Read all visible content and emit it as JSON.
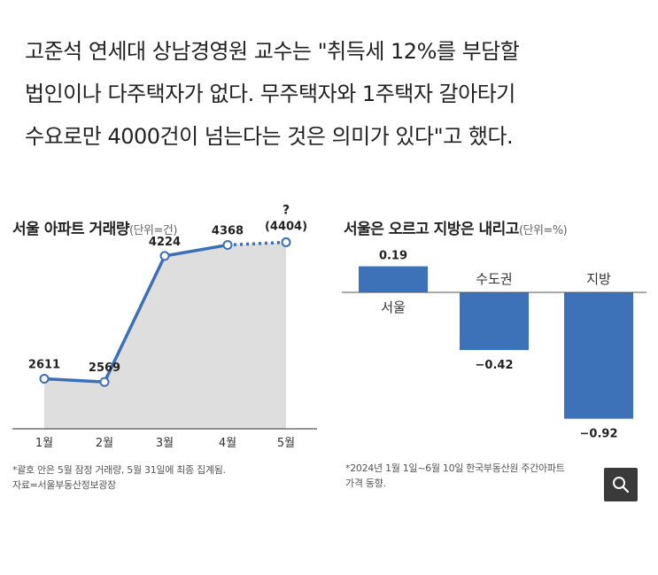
{
  "quote": {
    "line1": "고준석 연세대 상남경영원 교수는 \"취득세 12%를 부담할",
    "line2": "법인이나 다주택자가 없다. 무주택자와 1주택자 갈아타기",
    "line3": "수요로만 4000건이 넘는다는 것은 의미가 있다\"고 했다."
  },
  "left_chart": {
    "title": "서울 아파트 거래량",
    "unit": "(단위=건)",
    "note_line1": "*괄호 안은 5월 잠정 거래량, 5월 31일에 최종 집계됨.",
    "note_line2": "자료=서울부동산정보광장"
  },
  "right_chart": {
    "title": "서울은 오르고 지방은 내리고",
    "unit": "(단위=%)",
    "note_line1": "*2024년 1월 1일~6월 10일 한국부동산원 주간아파트",
    "note_line2": "가격 동향."
  },
  "colors": {
    "accent": "#3d6fb5",
    "area": "#dedede",
    "bar": "#3d72b8"
  },
  "zoom_icon": "zoom-search-icon",
  "chart_data": [
    {
      "type": "line",
      "title": "서울 아파트 거래량",
      "unit": "(단위=건)",
      "categories": [
        "1월",
        "2월",
        "3월",
        "4월",
        "5월"
      ],
      "values": [
        2611,
        2569,
        4224,
        4368,
        4404
      ],
      "labels": [
        "2611",
        "2569",
        "4224",
        "4368",
        "(4404)"
      ],
      "provisional_marker": "?",
      "provisional_index": 4
    },
    {
      "type": "bar",
      "title": "서울은 오르고 지방은 내리고",
      "unit": "(단위=%)",
      "categories": [
        "서울",
        "수도권",
        "지방"
      ],
      "values": [
        0.19,
        -0.42,
        -0.92
      ],
      "labels": [
        "0.19",
        "−0.42",
        "−0.92"
      ]
    }
  ]
}
